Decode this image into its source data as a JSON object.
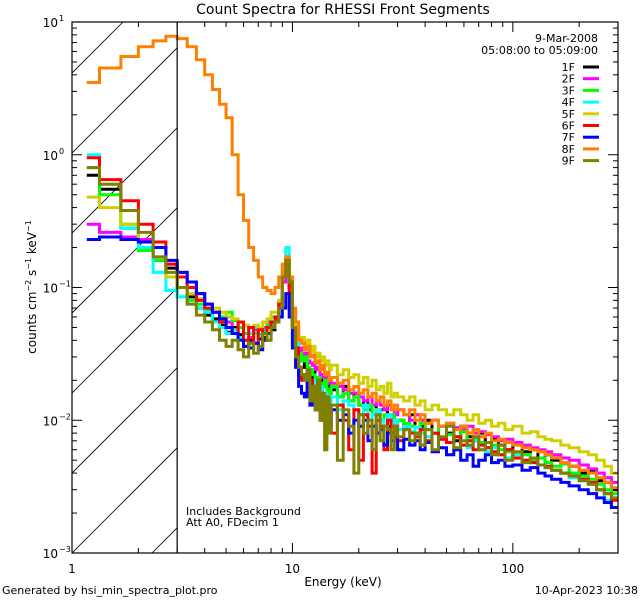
{
  "chart_data": {
    "type": "line",
    "title": "Count Spectra for RHESSI Front Segments",
    "xlabel": "Energy (keV)",
    "ylabel": "counts cm^-2 s^-1 keV^-1",
    "xscale": "log",
    "yscale": "log",
    "xlim": [
      1,
      300
    ],
    "ylim": [
      0.001,
      10
    ],
    "x_tick_labels": [
      {
        "value": 1,
        "label": "1"
      },
      {
        "value": 10,
        "label": "10"
      },
      {
        "value": 100,
        "label": "100"
      }
    ],
    "y_tick_labels": [
      {
        "value": 10,
        "base": "10",
        "exp": "1"
      },
      {
        "value": 1,
        "base": "10",
        "exp": "0"
      },
      {
        "value": 0.1,
        "base": "10",
        "exp": "−1"
      },
      {
        "value": 0.01,
        "base": "10",
        "exp": "−2"
      },
      {
        "value": 0.001,
        "base": "10",
        "exp": "−3"
      }
    ],
    "grid": false,
    "legend_position": "top-right",
    "hatched_region_keV": [
      1,
      3
    ],
    "date": "9-Mar-2008",
    "time_range": "05:08:00 to 05:09:00",
    "annotations": [
      "Includes Background",
      "Att A0, FDecim 1"
    ],
    "energy_edges": [
      1.167,
      1.333,
      1.667,
      2.0,
      2.333,
      2.667,
      3.0,
      3.333,
      3.667,
      4.0,
      4.333,
      4.667,
      5.0,
      5.333,
      5.667,
      6.0,
      6.333,
      6.667,
      7.0,
      7.333,
      7.667,
      8.0,
      8.333,
      8.667,
      9.0,
      9.333,
      9.667,
      10.0,
      10.333,
      10.667,
      11.0,
      11.333,
      11.667,
      12.0,
      12.333,
      12.667,
      13.0,
      13.333,
      13.667,
      14.0,
      14.333,
      14.667,
      15,
      16,
      17,
      18,
      19,
      20,
      21,
      22,
      23,
      24,
      25,
      26,
      27,
      28,
      29,
      30,
      32,
      34,
      36,
      38,
      40,
      43,
      46,
      50,
      54,
      58,
      62,
      66,
      70,
      75,
      80,
      86,
      92,
      100,
      110,
      120,
      130,
      140,
      150,
      165,
      180,
      200,
      220,
      240,
      260,
      280,
      300
    ],
    "series": [
      {
        "name": "1F",
        "color": "#000000",
        "values": [
          0.7,
          0.55,
          0.28,
          0.22,
          0.16,
          0.14,
          0.1,
          0.085,
          0.07,
          0.062,
          0.058,
          0.052,
          0.046,
          0.05,
          0.044,
          0.036,
          0.04,
          0.045,
          0.041,
          0.042,
          0.05,
          0.048,
          0.055,
          0.07,
          0.12,
          0.16,
          0.1,
          0.05,
          0.04,
          0.022,
          0.025,
          0.028,
          0.023,
          0.02,
          0.024,
          0.021,
          0.019,
          0.016,
          0.022,
          0.018,
          0.02,
          0.016,
          0.017,
          0.015,
          0.018,
          0.014,
          0.016,
          0.013,
          0.014,
          0.012,
          0.013,
          0.011,
          0.012,
          0.012,
          0.009,
          0.011,
          0.01,
          0.01,
          0.009,
          0.011,
          0.008,
          0.009,
          0.01,
          0.008,
          0.009,
          0.008,
          0.007,
          0.009,
          0.0075,
          0.007,
          0.008,
          0.0068,
          0.0072,
          0.0065,
          0.006,
          0.0068,
          0.0058,
          0.006,
          0.0052,
          0.0055,
          0.005,
          0.0047,
          0.0045,
          0.004,
          0.0042,
          0.0035,
          0.0034,
          0.003
        ]
      },
      {
        "name": "2F",
        "color": "#ff00ff",
        "values": [
          0.3,
          0.26,
          0.24,
          0.23,
          0.2,
          0.15,
          0.13,
          0.11,
          0.09,
          0.075,
          0.065,
          0.06,
          0.055,
          0.048,
          0.05,
          0.045,
          0.042,
          0.048,
          0.044,
          0.05,
          0.055,
          0.06,
          0.058,
          0.07,
          0.11,
          0.15,
          0.1,
          0.06,
          0.05,
          0.035,
          0.03,
          0.032,
          0.028,
          0.027,
          0.026,
          0.024,
          0.025,
          0.022,
          0.021,
          0.022,
          0.019,
          0.02,
          0.019,
          0.018,
          0.017,
          0.016,
          0.016,
          0.015,
          0.014,
          0.015,
          0.013,
          0.014,
          0.013,
          0.012,
          0.013,
          0.012,
          0.011,
          0.012,
          0.011,
          0.01,
          0.011,
          0.01,
          0.0095,
          0.01,
          0.009,
          0.0095,
          0.0088,
          0.0085,
          0.009,
          0.008,
          0.0082,
          0.0078,
          0.0075,
          0.007,
          0.0072,
          0.0068,
          0.0065,
          0.0062,
          0.006,
          0.0058,
          0.0055,
          0.0052,
          0.005,
          0.0046,
          0.0043,
          0.004,
          0.0037,
          0.0034
        ]
      },
      {
        "name": "3F",
        "color": "#00ff00",
        "values": [
          0.8,
          0.5,
          0.3,
          0.19,
          0.16,
          0.12,
          0.085,
          0.08,
          0.075,
          0.068,
          0.065,
          0.06,
          0.065,
          0.056,
          0.05,
          0.045,
          0.05,
          0.045,
          0.044,
          0.048,
          0.052,
          0.06,
          0.06,
          0.075,
          0.12,
          0.16,
          0.11,
          0.055,
          0.045,
          0.032,
          0.028,
          0.03,
          0.025,
          0.024,
          0.022,
          0.02,
          0.021,
          0.019,
          0.018,
          0.02,
          0.017,
          0.016,
          0.018,
          0.015,
          0.016,
          0.014,
          0.015,
          0.013,
          0.012,
          0.013,
          0.011,
          0.012,
          0.01,
          0.011,
          0.01,
          0.011,
          0.009,
          0.01,
          0.0095,
          0.009,
          0.008,
          0.0095,
          0.0085,
          0.008,
          0.009,
          0.0078,
          0.0075,
          0.0082,
          0.007,
          0.0072,
          0.0068,
          0.0062,
          0.0065,
          0.006,
          0.0058,
          0.0056,
          0.0055,
          0.005,
          0.0052,
          0.0048,
          0.0045,
          0.0047,
          0.004,
          0.0038,
          0.0036,
          0.0033,
          0.003,
          0.0028
        ]
      },
      {
        "name": "4F",
        "color": "#00ffff",
        "values": [
          1.0,
          0.6,
          0.28,
          0.2,
          0.13,
          0.095,
          0.085,
          0.075,
          0.07,
          0.065,
          0.055,
          0.05,
          0.045,
          0.048,
          0.042,
          0.04,
          0.045,
          0.05,
          0.043,
          0.046,
          0.05,
          0.052,
          0.06,
          0.08,
          0.13,
          0.2,
          0.12,
          0.05,
          0.04,
          0.025,
          0.022,
          0.02,
          0.023,
          0.018,
          0.02,
          0.017,
          0.016,
          0.018,
          0.014,
          0.016,
          0.015,
          0.013,
          0.015,
          0.012,
          0.014,
          0.013,
          0.012,
          0.011,
          0.013,
          0.01,
          0.011,
          0.012,
          0.01,
          0.009,
          0.011,
          0.0095,
          0.01,
          0.0085,
          0.009,
          0.0082,
          0.0088,
          0.008,
          0.0075,
          0.008,
          0.0072,
          0.0068,
          0.0075,
          0.0065,
          0.0062,
          0.007,
          0.006,
          0.0058,
          0.0062,
          0.0055,
          0.0052,
          0.0055,
          0.005,
          0.0048,
          0.0046,
          0.0044,
          0.0042,
          0.004,
          0.0037,
          0.0035,
          0.0033,
          0.003,
          0.0025,
          0.0022
        ]
      },
      {
        "name": "5F",
        "color": "#d0d000",
        "values": [
          0.48,
          0.4,
          0.3,
          0.22,
          0.17,
          0.12,
          0.1,
          0.09,
          0.082,
          0.075,
          0.07,
          0.065,
          0.06,
          0.058,
          0.055,
          0.052,
          0.05,
          0.052,
          0.05,
          0.055,
          0.058,
          0.065,
          0.065,
          0.08,
          0.13,
          0.17,
          0.12,
          0.065,
          0.05,
          0.04,
          0.042,
          0.035,
          0.04,
          0.033,
          0.036,
          0.03,
          0.032,
          0.028,
          0.03,
          0.026,
          0.028,
          0.024,
          0.026,
          0.022,
          0.024,
          0.021,
          0.022,
          0.019,
          0.021,
          0.018,
          0.02,
          0.017,
          0.018,
          0.016,
          0.019,
          0.015,
          0.016,
          0.015,
          0.014,
          0.015,
          0.013,
          0.014,
          0.012,
          0.013,
          0.012,
          0.011,
          0.012,
          0.011,
          0.01,
          0.011,
          0.0095,
          0.01,
          0.009,
          0.0095,
          0.0085,
          0.009,
          0.008,
          0.0082,
          0.0075,
          0.0072,
          0.007,
          0.0065,
          0.0062,
          0.0058,
          0.0055,
          0.005,
          0.0045,
          0.004
        ]
      },
      {
        "name": "6F",
        "color": "#ff0000",
        "values": [
          0.95,
          0.65,
          0.45,
          0.3,
          0.22,
          0.15,
          0.12,
          0.1,
          0.08,
          0.07,
          0.065,
          0.055,
          0.05,
          0.045,
          0.055,
          0.04,
          0.05,
          0.038,
          0.048,
          0.04,
          0.05,
          0.055,
          0.06,
          0.075,
          0.12,
          0.15,
          0.09,
          0.05,
          0.035,
          0.025,
          0.02,
          0.022,
          0.016,
          0.02,
          0.014,
          0.018,
          0.012,
          0.016,
          0.01,
          0.015,
          0.014,
          0.012,
          0.008,
          0.013,
          0.01,
          0.006,
          0.012,
          0.005,
          0.011,
          0.009,
          0.004,
          0.01,
          0.009,
          0.006,
          0.01,
          0.008,
          0.009,
          0.007,
          0.0085,
          0.008,
          0.0075,
          0.0085,
          0.007,
          0.008,
          0.0072,
          0.0068,
          0.0075,
          0.0065,
          0.007,
          0.006,
          0.0065,
          0.0062,
          0.0058,
          0.0055,
          0.006,
          0.0052,
          0.005,
          0.0048,
          0.0046,
          0.0045,
          0.0042,
          0.004,
          0.0038,
          0.0036,
          0.0034,
          0.003,
          0.0028,
          0.0025
        ]
      },
      {
        "name": "7F",
        "color": "#0000ff",
        "values": [
          0.23,
          0.24,
          0.23,
          0.22,
          0.2,
          0.16,
          0.13,
          0.11,
          0.09,
          0.075,
          0.065,
          0.058,
          0.05,
          0.045,
          0.04,
          0.036,
          0.035,
          0.038,
          0.034,
          0.04,
          0.045,
          0.05,
          0.055,
          0.06,
          0.07,
          0.09,
          0.06,
          0.035,
          0.025,
          0.018,
          0.016,
          0.015,
          0.02,
          0.013,
          0.016,
          0.012,
          0.014,
          0.011,
          0.015,
          0.01,
          0.013,
          0.009,
          0.012,
          0.01,
          0.011,
          0.008,
          0.01,
          0.009,
          0.01,
          0.007,
          0.009,
          0.008,
          0.0085,
          0.0065,
          0.008,
          0.007,
          0.0075,
          0.006,
          0.0072,
          0.0065,
          0.007,
          0.006,
          0.0068,
          0.0058,
          0.0062,
          0.0055,
          0.006,
          0.005,
          0.0055,
          0.0045,
          0.005,
          0.0055,
          0.0048,
          0.005,
          0.0045,
          0.0046,
          0.0042,
          0.0044,
          0.004,
          0.0038,
          0.0036,
          0.0034,
          0.0032,
          0.003,
          0.0028,
          0.0026,
          0.0024,
          0.0022
        ]
      },
      {
        "name": "8F",
        "color": "#ff8000",
        "values": [
          3.5,
          4.5,
          5.5,
          6.5,
          7.2,
          7.8,
          7.5,
          6.5,
          5.2,
          4.0,
          3.1,
          2.4,
          1.9,
          1.0,
          0.5,
          0.32,
          0.2,
          0.16,
          0.12,
          0.1,
          0.095,
          0.09,
          0.1,
          0.12,
          0.15,
          0.17,
          0.12,
          0.07,
          0.055,
          0.04,
          0.038,
          0.034,
          0.036,
          0.03,
          0.031,
          0.027,
          0.028,
          0.024,
          0.026,
          0.022,
          0.023,
          0.02,
          0.021,
          0.019,
          0.02,
          0.017,
          0.018,
          0.016,
          0.017,
          0.015,
          0.016,
          0.014,
          0.015,
          0.013,
          0.014,
          0.012,
          0.013,
          0.012,
          0.011,
          0.012,
          0.01,
          0.011,
          0.0095,
          0.01,
          0.009,
          0.0095,
          0.0085,
          0.009,
          0.008,
          0.0085,
          0.0075,
          0.008,
          0.007,
          0.0072,
          0.0068,
          0.0065,
          0.0062,
          0.006,
          0.0058,
          0.0055,
          0.0052,
          0.0048,
          0.0045,
          0.0042,
          0.004,
          0.0037,
          0.0034,
          0.0031
        ]
      },
      {
        "name": "9F",
        "color": "#808000",
        "values": [
          0.8,
          0.6,
          0.38,
          0.26,
          0.17,
          0.13,
          0.1,
          0.075,
          0.062,
          0.055,
          0.048,
          0.04,
          0.036,
          0.04,
          0.034,
          0.03,
          0.038,
          0.032,
          0.036,
          0.045,
          0.04,
          0.05,
          0.055,
          0.07,
          0.12,
          0.16,
          0.11,
          0.05,
          0.03,
          0.025,
          0.022,
          0.02,
          0.024,
          0.014,
          0.018,
          0.012,
          0.02,
          0.01,
          0.016,
          0.006,
          0.015,
          0.008,
          0.013,
          0.005,
          0.012,
          0.009,
          0.004,
          0.011,
          0.008,
          0.01,
          0.006,
          0.011,
          0.007,
          0.009,
          0.0085,
          0.006,
          0.009,
          0.0075,
          0.0085,
          0.007,
          0.008,
          0.0065,
          0.0085,
          0.006,
          0.0075,
          0.009,
          0.0062,
          0.007,
          0.0065,
          0.0075,
          0.006,
          0.0068,
          0.0055,
          0.0065,
          0.005,
          0.0058,
          0.0048,
          0.0052,
          0.0046,
          0.0044,
          0.0042,
          0.004,
          0.0038,
          0.0035,
          0.0033,
          0.003,
          0.0028,
          0.0026
        ]
      }
    ]
  },
  "footer": {
    "generated_by": "Generated by hsi_min_spectra_plot.pro",
    "timestamp": "10-Apr-2023 10:38"
  }
}
